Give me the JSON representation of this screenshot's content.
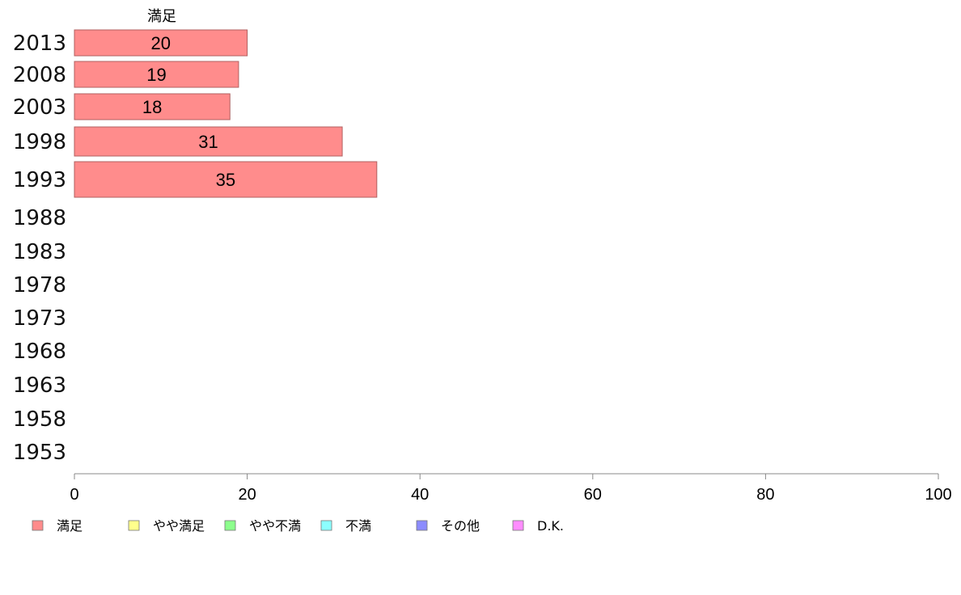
{
  "chart_data": {
    "type": "bar",
    "orientation": "horizontal",
    "series_title": "満足",
    "categories": [
      "2013",
      "2008",
      "2003",
      "1998",
      "1993",
      "1988",
      "1983",
      "1978",
      "1973",
      "1968",
      "1963",
      "1958",
      "1953"
    ],
    "series": [
      {
        "name": "満足",
        "color": "#ff8c8c",
        "values": [
          20,
          19,
          18,
          31,
          35,
          null,
          null,
          null,
          null,
          null,
          null,
          null,
          null
        ]
      }
    ],
    "xlim": [
      0,
      100
    ],
    "xticks": [
      0,
      20,
      40,
      60,
      80,
      100
    ],
    "grid": false,
    "legend_position": "bottom",
    "legend": [
      {
        "label": "満足",
        "color": "#ff8c8c"
      },
      {
        "label": "やや満足",
        "color": "#ffff8c"
      },
      {
        "label": "やや不満",
        "color": "#8cff8c"
      },
      {
        "label": "不満",
        "color": "#8cffff"
      },
      {
        "label": "その他",
        "color": "#8c8cff"
      },
      {
        "label": "D.K.",
        "color": "#ff8cff"
      }
    ]
  }
}
